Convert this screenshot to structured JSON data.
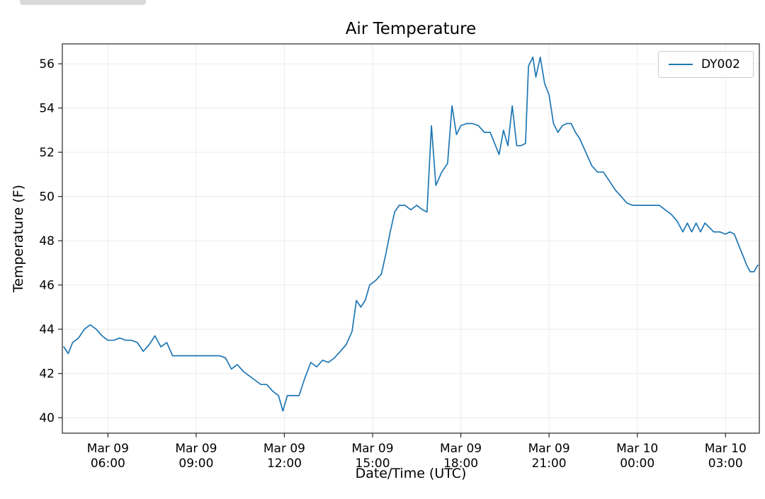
{
  "page": {
    "background": "#ffffff"
  },
  "decor": {
    "window_fragment_color": "#d9d9d9"
  },
  "chart_data": {
    "type": "line",
    "title": "Air Temperature",
    "xlabel": "Date/Time (UTC)",
    "ylabel": "Temperature (F)",
    "grid": true,
    "grid_color": "#ebebeb",
    "axis_color": "#262626",
    "x_unit": "hours since Mar 09 00:00 UTC",
    "xlim": [
      4.45,
      28.15
    ],
    "ylim": [
      39.3,
      56.9
    ],
    "x_ticks": [
      {
        "value": 6,
        "lines": [
          "Mar 09",
          "06:00"
        ]
      },
      {
        "value": 9,
        "lines": [
          "Mar 09",
          "09:00"
        ]
      },
      {
        "value": 12,
        "lines": [
          "Mar 09",
          "12:00"
        ]
      },
      {
        "value": 15,
        "lines": [
          "Mar 09",
          "15:00"
        ]
      },
      {
        "value": 18,
        "lines": [
          "Mar 09",
          "18:00"
        ]
      },
      {
        "value": 21,
        "lines": [
          "Mar 09",
          "21:00"
        ]
      },
      {
        "value": 24,
        "lines": [
          "Mar 10",
          "00:00"
        ]
      },
      {
        "value": 27,
        "lines": [
          "Mar 10",
          "03:00"
        ]
      }
    ],
    "y_ticks": [
      40,
      42,
      44,
      46,
      48,
      50,
      52,
      54,
      56
    ],
    "legend": {
      "position": "upper right",
      "entries": [
        {
          "label": "DY002",
          "color": "#1f77b4"
        }
      ]
    },
    "series": [
      {
        "name": "DY002",
        "color": "#1f77b4",
        "points": [
          [
            4.5,
            43.2
          ],
          [
            4.65,
            42.9
          ],
          [
            4.8,
            43.4
          ],
          [
            5.0,
            43.6
          ],
          [
            5.2,
            44.0
          ],
          [
            5.4,
            44.2
          ],
          [
            5.6,
            44.0
          ],
          [
            5.8,
            43.7
          ],
          [
            6.0,
            43.5
          ],
          [
            6.2,
            43.5
          ],
          [
            6.4,
            43.6
          ],
          [
            6.6,
            43.5
          ],
          [
            6.8,
            43.5
          ],
          [
            7.0,
            43.4
          ],
          [
            7.2,
            43.0
          ],
          [
            7.4,
            43.3
          ],
          [
            7.6,
            43.7
          ],
          [
            7.8,
            43.2
          ],
          [
            8.0,
            43.4
          ],
          [
            8.2,
            42.8
          ],
          [
            8.4,
            42.8
          ],
          [
            8.6,
            42.8
          ],
          [
            8.8,
            42.8
          ],
          [
            9.0,
            42.8
          ],
          [
            9.2,
            42.8
          ],
          [
            9.4,
            42.8
          ],
          [
            9.6,
            42.8
          ],
          [
            9.8,
            42.8
          ],
          [
            10.0,
            42.7
          ],
          [
            10.2,
            42.2
          ],
          [
            10.4,
            42.4
          ],
          [
            10.6,
            42.1
          ],
          [
            10.8,
            41.9
          ],
          [
            11.0,
            41.7
          ],
          [
            11.2,
            41.5
          ],
          [
            11.4,
            41.5
          ],
          [
            11.6,
            41.2
          ],
          [
            11.8,
            41.0
          ],
          [
            11.95,
            40.3
          ],
          [
            12.1,
            41.0
          ],
          [
            12.3,
            41.0
          ],
          [
            12.5,
            41.0
          ],
          [
            12.7,
            41.8
          ],
          [
            12.9,
            42.5
          ],
          [
            13.1,
            42.3
          ],
          [
            13.3,
            42.6
          ],
          [
            13.5,
            42.5
          ],
          [
            13.7,
            42.7
          ],
          [
            13.9,
            43.0
          ],
          [
            14.1,
            43.3
          ],
          [
            14.3,
            43.9
          ],
          [
            14.45,
            45.3
          ],
          [
            14.6,
            45.0
          ],
          [
            14.75,
            45.3
          ],
          [
            14.9,
            46.0
          ],
          [
            15.1,
            46.2
          ],
          [
            15.3,
            46.5
          ],
          [
            15.45,
            47.4
          ],
          [
            15.6,
            48.4
          ],
          [
            15.75,
            49.3
          ],
          [
            15.9,
            49.6
          ],
          [
            16.1,
            49.6
          ],
          [
            16.3,
            49.4
          ],
          [
            16.5,
            49.6
          ],
          [
            16.7,
            49.4
          ],
          [
            16.85,
            49.3
          ],
          [
            17.0,
            53.2
          ],
          [
            17.15,
            50.5
          ],
          [
            17.35,
            51.1
          ],
          [
            17.55,
            51.5
          ],
          [
            17.7,
            54.1
          ],
          [
            17.85,
            52.8
          ],
          [
            18.0,
            53.2
          ],
          [
            18.2,
            53.3
          ],
          [
            18.4,
            53.3
          ],
          [
            18.6,
            53.2
          ],
          [
            18.8,
            52.9
          ],
          [
            19.0,
            52.9
          ],
          [
            19.15,
            52.4
          ],
          [
            19.3,
            51.9
          ],
          [
            19.45,
            53.0
          ],
          [
            19.6,
            52.3
          ],
          [
            19.75,
            54.1
          ],
          [
            19.9,
            52.3
          ],
          [
            20.05,
            52.3
          ],
          [
            20.2,
            52.4
          ],
          [
            20.3,
            55.9
          ],
          [
            20.45,
            56.3
          ],
          [
            20.55,
            55.4
          ],
          [
            20.7,
            56.3
          ],
          [
            20.85,
            55.1
          ],
          [
            21.0,
            54.6
          ],
          [
            21.15,
            53.3
          ],
          [
            21.3,
            52.9
          ],
          [
            21.45,
            53.2
          ],
          [
            21.6,
            53.3
          ],
          [
            21.75,
            53.3
          ],
          [
            21.9,
            52.9
          ],
          [
            22.05,
            52.6
          ],
          [
            22.25,
            52.0
          ],
          [
            22.45,
            51.4
          ],
          [
            22.65,
            51.1
          ],
          [
            22.85,
            51.1
          ],
          [
            23.05,
            50.7
          ],
          [
            23.25,
            50.3
          ],
          [
            23.45,
            50.0
          ],
          [
            23.65,
            49.7
          ],
          [
            23.85,
            49.6
          ],
          [
            24.05,
            49.6
          ],
          [
            24.25,
            49.6
          ],
          [
            24.5,
            49.6
          ],
          [
            24.75,
            49.6
          ],
          [
            24.95,
            49.4
          ],
          [
            25.15,
            49.2
          ],
          [
            25.35,
            48.9
          ],
          [
            25.55,
            48.4
          ],
          [
            25.7,
            48.8
          ],
          [
            25.85,
            48.4
          ],
          [
            26.0,
            48.8
          ],
          [
            26.15,
            48.4
          ],
          [
            26.3,
            48.8
          ],
          [
            26.45,
            48.6
          ],
          [
            26.6,
            48.4
          ],
          [
            26.8,
            48.4
          ],
          [
            27.0,
            48.3
          ],
          [
            27.15,
            48.4
          ],
          [
            27.3,
            48.3
          ],
          [
            27.45,
            47.8
          ],
          [
            27.6,
            47.3
          ],
          [
            27.72,
            46.9
          ],
          [
            27.84,
            46.6
          ],
          [
            27.97,
            46.6
          ],
          [
            28.1,
            46.9
          ]
        ]
      }
    ]
  }
}
